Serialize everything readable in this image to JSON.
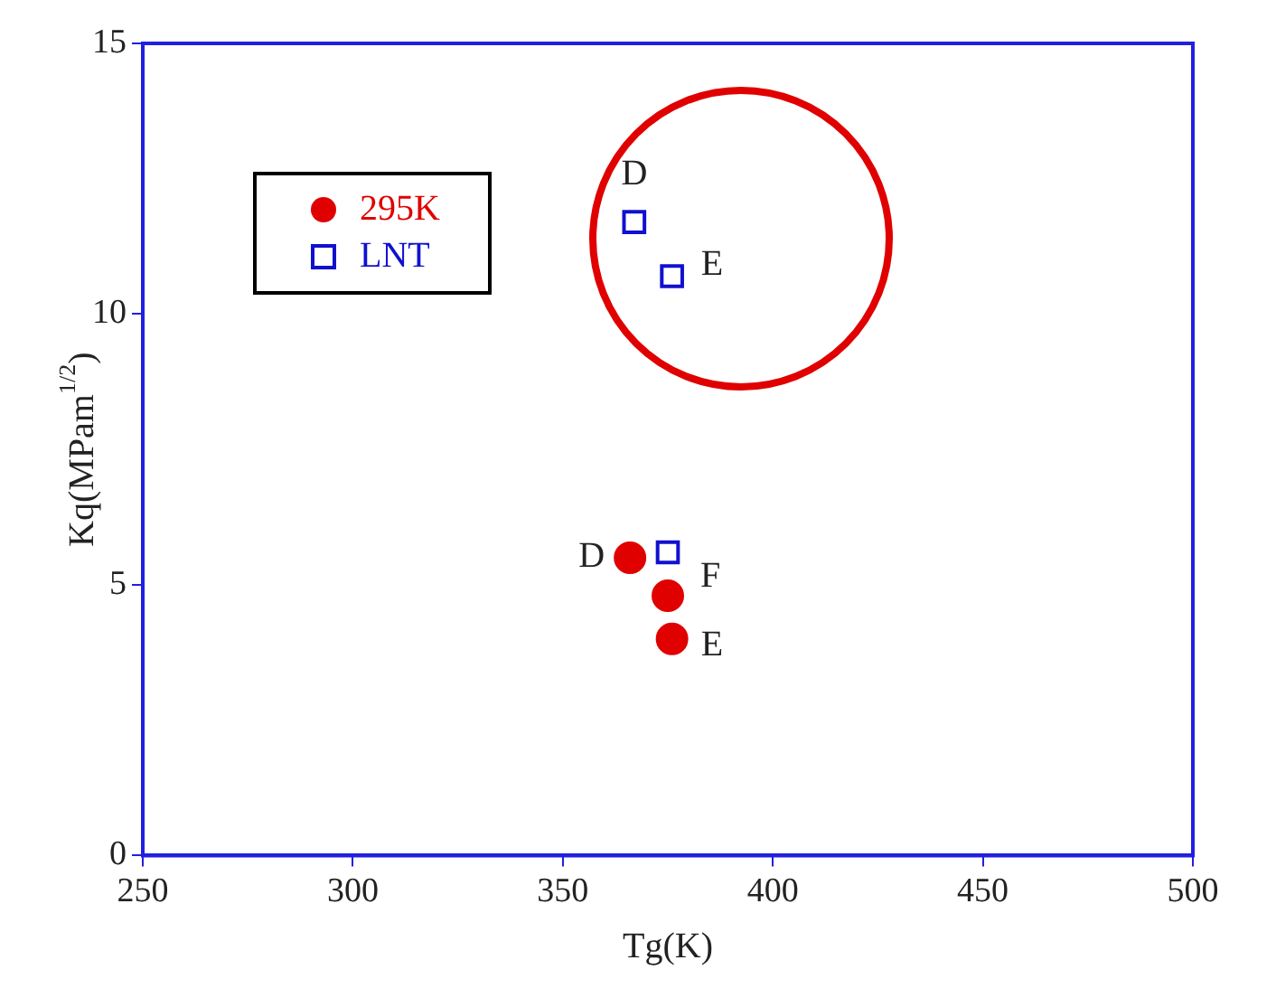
{
  "chart_data": {
    "type": "scatter",
    "xlabel": "Tg(K)",
    "ylabel": "Kq(MPam$^{1/2}$)",
    "series": [
      {
        "name": "295K",
        "color": "#e00000",
        "marker": "circle",
        "x": [
          366,
          375,
          376
        ],
        "values": [
          5.5,
          4.8,
          4.0
        ]
      },
      {
        "name": "LNT",
        "color": "#1010d0",
        "marker": "square",
        "x": [
          375,
          367,
          376
        ],
        "values": [
          5.6,
          11.7,
          10.7
        ]
      }
    ],
    "xlim": [
      250,
      500
    ],
    "xticks": [
      250,
      300,
      350,
      400,
      450,
      500
    ],
    "ylim": [
      0,
      15
    ],
    "yticks": [
      0,
      5,
      10,
      15
    ],
    "grid": false,
    "legend": "top left",
    "annotations": [
      {
        "text": "D",
        "x": 366,
        "y": 5.5
      },
      {
        "text": "F",
        "x": 375,
        "y": 4.8
      },
      {
        "text": "E",
        "x": 376,
        "y": 4.0
      },
      {
        "text": "D",
        "x": 367,
        "y": 11.7
      },
      {
        "text": "E",
        "x": 376,
        "y": 10.7
      }
    ]
  }
}
